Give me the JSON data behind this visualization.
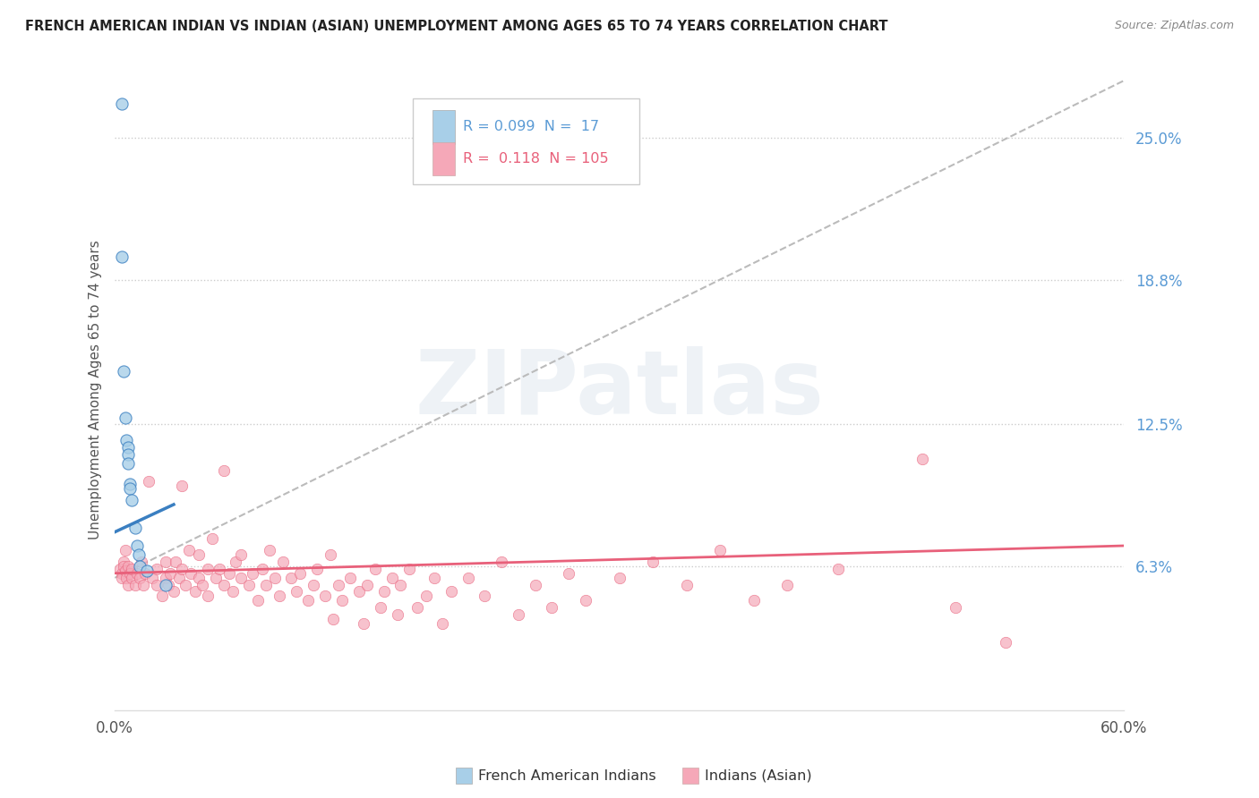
{
  "title": "FRENCH AMERICAN INDIAN VS INDIAN (ASIAN) UNEMPLOYMENT AMONG AGES 65 TO 74 YEARS CORRELATION CHART",
  "source": "Source: ZipAtlas.com",
  "ylabel": "Unemployment Among Ages 65 to 74 years",
  "xlim": [
    0.0,
    0.6
  ],
  "ylim": [
    0.0,
    0.28
  ],
  "ytick_labels_right": [
    "25.0%",
    "18.8%",
    "12.5%",
    "6.3%"
  ],
  "ytick_values_right": [
    0.25,
    0.188,
    0.125,
    0.063
  ],
  "legend_label1": "French American Indians",
  "legend_label2": "Indians (Asian)",
  "color_blue": "#a8cfe8",
  "color_pink": "#f5a8b8",
  "color_blue_line": "#3a7fc1",
  "color_pink_line": "#e8607a",
  "color_dashed": "#bbbbbb",
  "watermark_text": "ZIPatlas",
  "background_color": "#ffffff",
  "scatter_blue": [
    [
      0.004,
      0.265
    ],
    [
      0.004,
      0.198
    ],
    [
      0.005,
      0.148
    ],
    [
      0.006,
      0.128
    ],
    [
      0.007,
      0.118
    ],
    [
      0.008,
      0.115
    ],
    [
      0.008,
      0.112
    ],
    [
      0.008,
      0.108
    ],
    [
      0.009,
      0.099
    ],
    [
      0.009,
      0.097
    ],
    [
      0.01,
      0.092
    ],
    [
      0.012,
      0.08
    ],
    [
      0.013,
      0.072
    ],
    [
      0.014,
      0.068
    ],
    [
      0.015,
      0.063
    ],
    [
      0.019,
      0.061
    ],
    [
      0.03,
      0.055
    ]
  ],
  "scatter_pink": [
    [
      0.003,
      0.062
    ],
    [
      0.004,
      0.06
    ],
    [
      0.004,
      0.058
    ],
    [
      0.005,
      0.065
    ],
    [
      0.005,
      0.063
    ],
    [
      0.006,
      0.07
    ],
    [
      0.006,
      0.061
    ],
    [
      0.007,
      0.058
    ],
    [
      0.008,
      0.055
    ],
    [
      0.008,
      0.063
    ],
    [
      0.009,
      0.06
    ],
    [
      0.01,
      0.058
    ],
    [
      0.01,
      0.062
    ],
    [
      0.012,
      0.055
    ],
    [
      0.013,
      0.06
    ],
    [
      0.015,
      0.058
    ],
    [
      0.016,
      0.065
    ],
    [
      0.017,
      0.055
    ],
    [
      0.018,
      0.06
    ],
    [
      0.02,
      0.1
    ],
    [
      0.022,
      0.058
    ],
    [
      0.025,
      0.055
    ],
    [
      0.025,
      0.062
    ],
    [
      0.028,
      0.05
    ],
    [
      0.03,
      0.058
    ],
    [
      0.03,
      0.065
    ],
    [
      0.032,
      0.055
    ],
    [
      0.033,
      0.06
    ],
    [
      0.035,
      0.052
    ],
    [
      0.036,
      0.065
    ],
    [
      0.038,
      0.058
    ],
    [
      0.04,
      0.062
    ],
    [
      0.04,
      0.098
    ],
    [
      0.042,
      0.055
    ],
    [
      0.044,
      0.07
    ],
    [
      0.045,
      0.06
    ],
    [
      0.048,
      0.052
    ],
    [
      0.05,
      0.058
    ],
    [
      0.05,
      0.068
    ],
    [
      0.052,
      0.055
    ],
    [
      0.055,
      0.05
    ],
    [
      0.055,
      0.062
    ],
    [
      0.058,
      0.075
    ],
    [
      0.06,
      0.058
    ],
    [
      0.062,
      0.062
    ],
    [
      0.065,
      0.055
    ],
    [
      0.065,
      0.105
    ],
    [
      0.068,
      0.06
    ],
    [
      0.07,
      0.052
    ],
    [
      0.072,
      0.065
    ],
    [
      0.075,
      0.058
    ],
    [
      0.075,
      0.068
    ],
    [
      0.08,
      0.055
    ],
    [
      0.082,
      0.06
    ],
    [
      0.085,
      0.048
    ],
    [
      0.088,
      0.062
    ],
    [
      0.09,
      0.055
    ],
    [
      0.092,
      0.07
    ],
    [
      0.095,
      0.058
    ],
    [
      0.098,
      0.05
    ],
    [
      0.1,
      0.065
    ],
    [
      0.105,
      0.058
    ],
    [
      0.108,
      0.052
    ],
    [
      0.11,
      0.06
    ],
    [
      0.115,
      0.048
    ],
    [
      0.118,
      0.055
    ],
    [
      0.12,
      0.062
    ],
    [
      0.125,
      0.05
    ],
    [
      0.128,
      0.068
    ],
    [
      0.13,
      0.04
    ],
    [
      0.133,
      0.055
    ],
    [
      0.135,
      0.048
    ],
    [
      0.14,
      0.058
    ],
    [
      0.145,
      0.052
    ],
    [
      0.148,
      0.038
    ],
    [
      0.15,
      0.055
    ],
    [
      0.155,
      0.062
    ],
    [
      0.158,
      0.045
    ],
    [
      0.16,
      0.052
    ],
    [
      0.165,
      0.058
    ],
    [
      0.168,
      0.042
    ],
    [
      0.17,
      0.055
    ],
    [
      0.175,
      0.062
    ],
    [
      0.18,
      0.045
    ],
    [
      0.185,
      0.05
    ],
    [
      0.19,
      0.058
    ],
    [
      0.195,
      0.038
    ],
    [
      0.2,
      0.052
    ],
    [
      0.21,
      0.058
    ],
    [
      0.22,
      0.05
    ],
    [
      0.23,
      0.065
    ],
    [
      0.24,
      0.042
    ],
    [
      0.25,
      0.055
    ],
    [
      0.26,
      0.045
    ],
    [
      0.27,
      0.06
    ],
    [
      0.28,
      0.048
    ],
    [
      0.3,
      0.058
    ],
    [
      0.32,
      0.065
    ],
    [
      0.34,
      0.055
    ],
    [
      0.36,
      0.07
    ],
    [
      0.38,
      0.048
    ],
    [
      0.4,
      0.055
    ],
    [
      0.43,
      0.062
    ],
    [
      0.48,
      0.11
    ],
    [
      0.5,
      0.045
    ],
    [
      0.53,
      0.03
    ]
  ],
  "blue_line": {
    "x0": 0.0,
    "x1": 0.035,
    "y0": 0.078,
    "y1": 0.09
  },
  "pink_line": {
    "x0": 0.0,
    "x1": 0.6,
    "y0": 0.06,
    "y1": 0.072
  },
  "dashed_line": {
    "x0": 0.0,
    "x1": 0.6,
    "y0": 0.058,
    "y1": 0.275
  }
}
